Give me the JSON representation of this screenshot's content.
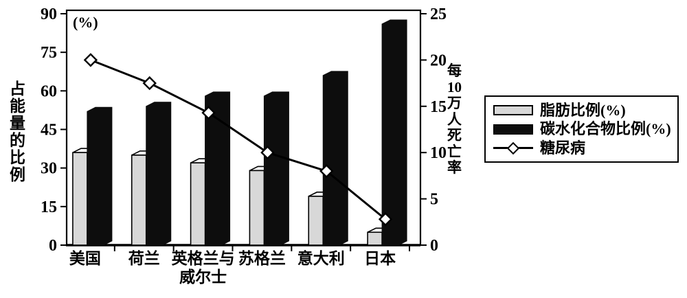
{
  "chart_data": {
    "type": "bar+line",
    "categories": [
      "美国",
      "荷兰",
      "英格兰与威尔士",
      "苏格兰",
      "意大利",
      "日本"
    ],
    "series": [
      {
        "name": "脂肪比例(%)",
        "type": "bar",
        "axis": "left",
        "color": "#d8d8d8",
        "top_color": "#f5f5f5",
        "border": "#000000",
        "values": [
          36,
          35,
          32,
          29,
          19,
          5
        ]
      },
      {
        "name": "碳水化合物比例(%)",
        "type": "bar",
        "axis": "left",
        "color": "#0d0d0d",
        "border": "#000000",
        "values": [
          52,
          54,
          58,
          58,
          66,
          86
        ]
      },
      {
        "name": "糖尿病",
        "type": "line",
        "axis": "right",
        "marker": "diamond",
        "color": "#000000",
        "marker_fill": "#ffffff",
        "values": [
          20,
          17.5,
          14.3,
          10,
          8,
          2.8
        ]
      }
    ],
    "left_axis": {
      "title": "占能量的比例",
      "corner_label": "(%)",
      "range": [
        0,
        90
      ],
      "ticks": [
        90,
        75,
        60,
        45,
        30,
        15,
        0
      ]
    },
    "right_axis": {
      "title": "每10万人死亡率",
      "range": [
        0,
        25
      ],
      "ticks": [
        25,
        20,
        15,
        10,
        5,
        0
      ]
    },
    "grid": false,
    "legend_position": "right"
  }
}
